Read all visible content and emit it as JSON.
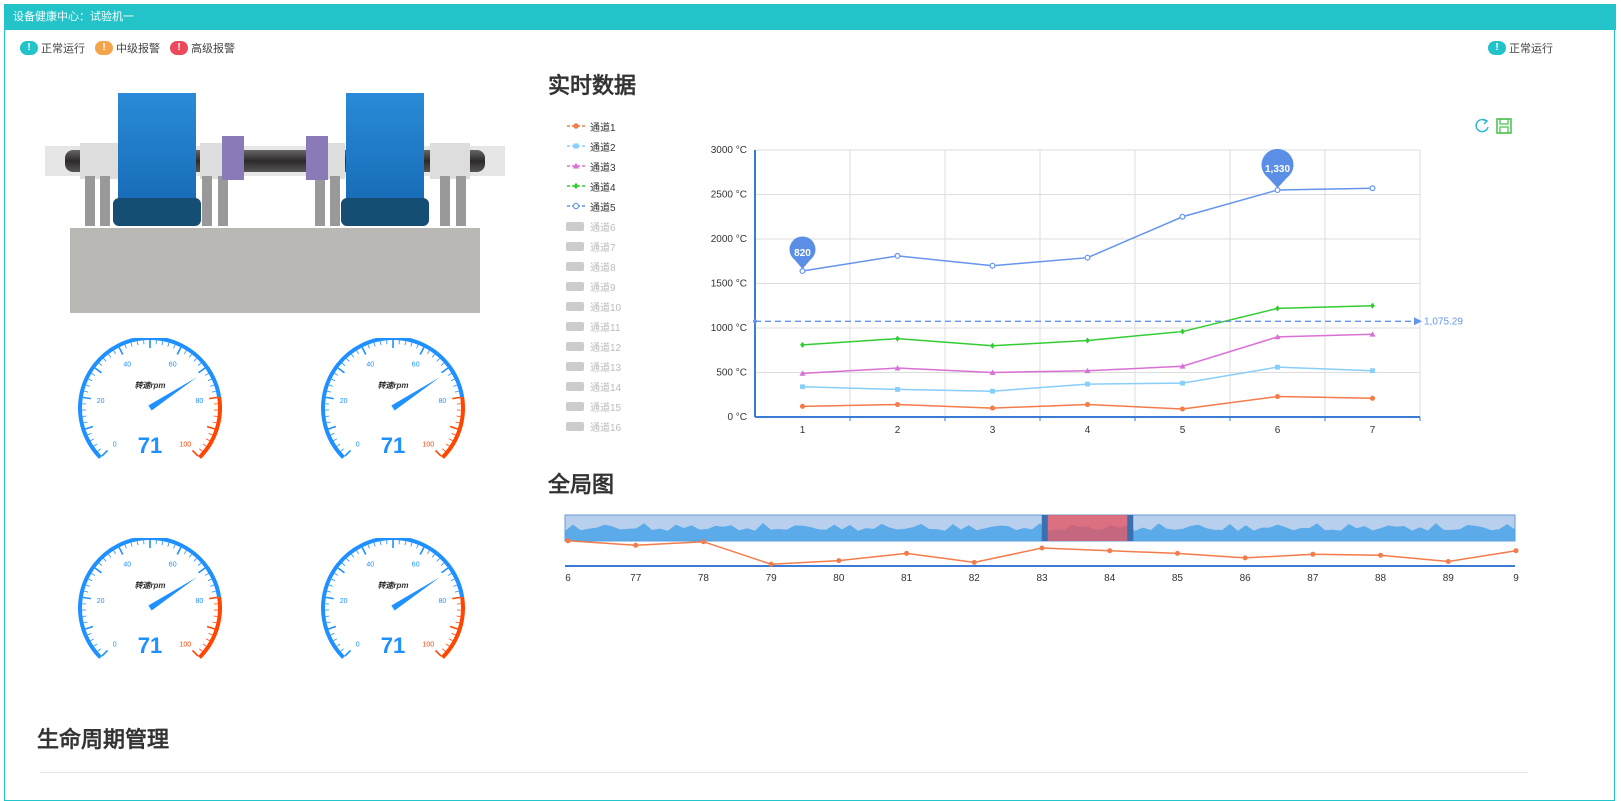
{
  "window": {
    "title": "设备健康中心：试验机一"
  },
  "status_legend": [
    {
      "label": "正常运行",
      "color": "#22c3c9",
      "icon": "exclamation-icon"
    },
    {
      "label": "中级报警",
      "color": "#f5a34a",
      "icon": "exclamation-icon"
    },
    {
      "label": "高级报警",
      "color": "#ec4a5a",
      "icon": "exclamation-icon"
    }
  ],
  "status_right": {
    "label": "正常运行",
    "color": "#22c3c9"
  },
  "sections": {
    "realtime": "实时数据",
    "overview": "全局图",
    "lifecycle": "生命周期管理"
  },
  "gauges": [
    {
      "label": "转速rpm",
      "value": 71,
      "min": 0,
      "max": 100,
      "ticks": [
        "0",
        "20",
        "40",
        "60",
        "80",
        "100"
      ]
    },
    {
      "label": "转速rpm",
      "value": 71,
      "min": 0,
      "max": 100,
      "ticks": [
        "0",
        "20",
        "40",
        "60",
        "80",
        "100"
      ]
    },
    {
      "label": "转速rpm",
      "value": 71,
      "min": 0,
      "max": 100,
      "ticks": [
        "0",
        "20",
        "40",
        "60",
        "80",
        "100"
      ]
    },
    {
      "label": "转速rpm",
      "value": 71,
      "min": 0,
      "max": 100,
      "ticks": [
        "0",
        "20",
        "40",
        "60",
        "80",
        "100"
      ]
    }
  ],
  "toolbox": {
    "refresh_icon": "refresh-icon",
    "save_icon": "save-icon"
  },
  "chart_data": [
    {
      "type": "line",
      "x": [
        1,
        2,
        3,
        4,
        5,
        6,
        7
      ],
      "y_ticks": [
        "0 °C",
        "500 °C",
        "1000 °C",
        "1500 °C",
        "2000 °C",
        "2500 °C",
        "3000 °C"
      ],
      "ylim": [
        0,
        3000
      ],
      "mark_line": {
        "value": 1075.29,
        "label": "1,075.29"
      },
      "mark_points": [
        {
          "series": "通道5",
          "x": 1,
          "label": "820"
        },
        {
          "series": "通道5",
          "x": 6,
          "label": "1,330"
        }
      ],
      "series": [
        {
          "name": "通道1",
          "color": "#f47b4a",
          "marker": "circle",
          "values": [
            120,
            140,
            100,
            140,
            90,
            230,
            210
          ]
        },
        {
          "name": "通道2",
          "color": "#87cefa",
          "marker": "square",
          "values": [
            340,
            310,
            290,
            370,
            380,
            560,
            520
          ]
        },
        {
          "name": "通道3",
          "color": "#da70d6",
          "marker": "triangle",
          "values": [
            490,
            550,
            500,
            520,
            570,
            900,
            930
          ]
        },
        {
          "name": "通道4",
          "color": "#32cd32",
          "marker": "diamond",
          "values": [
            810,
            880,
            800,
            860,
            960,
            1220,
            1250
          ]
        },
        {
          "name": "通道5",
          "color": "#6495ed",
          "marker": "empty-circle",
          "values": [
            1640,
            1810,
            1700,
            1790,
            2250,
            2550,
            2570
          ]
        }
      ],
      "disabled_series": [
        "通道6",
        "通道7",
        "通道8",
        "通道9",
        "通道10",
        "通道11",
        "通道12",
        "通道13",
        "通道14",
        "通道15",
        "通道16"
      ]
    },
    {
      "type": "line",
      "x_labels": [
        "6",
        "77",
        "78",
        "79",
        "80",
        "81",
        "82",
        "83",
        "84",
        "85",
        "86",
        "87",
        "88",
        "89",
        "9"
      ],
      "series": [
        {
          "color": "#f47b4a",
          "values": [
            28,
            23,
            27,
            2,
            6,
            14,
            4,
            20,
            17,
            14,
            9,
            13,
            12,
            5,
            17
          ]
        }
      ],
      "slider": {
        "start_pct": 50.5,
        "end_pct": 59.5
      }
    }
  ]
}
